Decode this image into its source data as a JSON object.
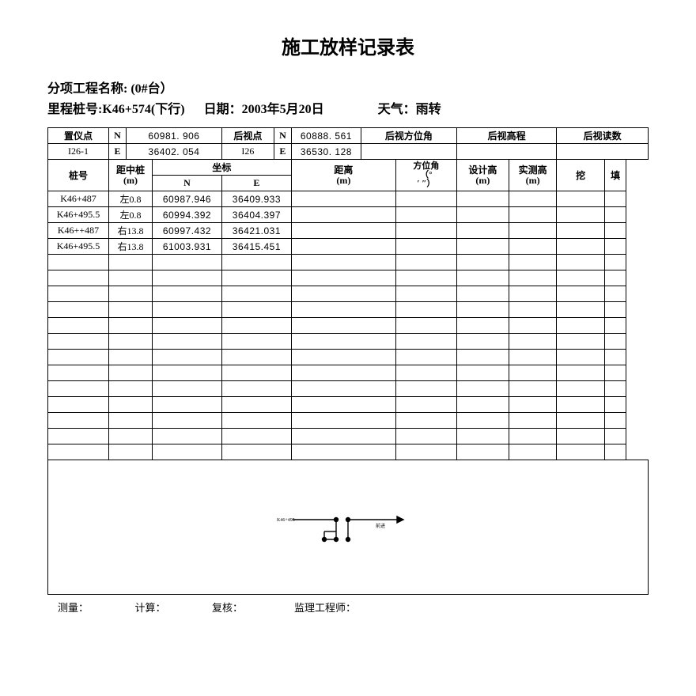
{
  "title": "施工放样记录表",
  "meta": {
    "project_label": "分项工程名称:",
    "project_value": "(0#台）",
    "mile_label": "里程桩号:",
    "mile_value": "K46+574(下行)",
    "date_label": "日期：",
    "date_value": "2003年5月20日",
    "weather_label": "天气：",
    "weather_value": "雨转"
  },
  "hdr": {
    "station_pt": "置仪点",
    "station_id": "I26-1",
    "N": "N",
    "E": "E",
    "station_n": "60981. 906",
    "station_e": "36402. 054",
    "backsight_pt": "后视点",
    "backsight_id": "I26",
    "backsight_n": "60888. 561",
    "backsight_e": "36530. 128",
    "back_azimuth": "后视方位角",
    "back_elev": "后视高程",
    "back_reading": "后视读数",
    "pile": "桩号",
    "offset": "距中桩\n(m)",
    "coord": "坐标",
    "coord_n": "N",
    "coord_e": "E",
    "dist": "距离\n(m)",
    "azimuth": "方位角\n（°\n′ ″）",
    "design_h": "设计高\n(m)",
    "measured_h": "实测高\n(m)",
    "cut": "挖",
    "fill": "填"
  },
  "rows": [
    {
      "pile": "K46+487",
      "off": "左0.8",
      "n": "60987.946",
      "e": "36409.933"
    },
    {
      "pile": "K46+495.5",
      "off": "左0.8",
      "n": "60994.392",
      "e": "36404.397"
    },
    {
      "pile": "K46++487",
      "off": "右13.8",
      "n": "60997.432",
      "e": "36421.031"
    },
    {
      "pile": "K46+495.5",
      "off": "右13.8",
      "n": "61003.931",
      "e": "36415.451"
    }
  ],
  "empty_rows": 13,
  "footer": {
    "measure": "测量：",
    "calc": "计算：",
    "review": "复核：",
    "supervisor": "监理工程师："
  },
  "colors": {
    "border": "#000000",
    "text": "#000000",
    "bg": "#ffffff"
  }
}
